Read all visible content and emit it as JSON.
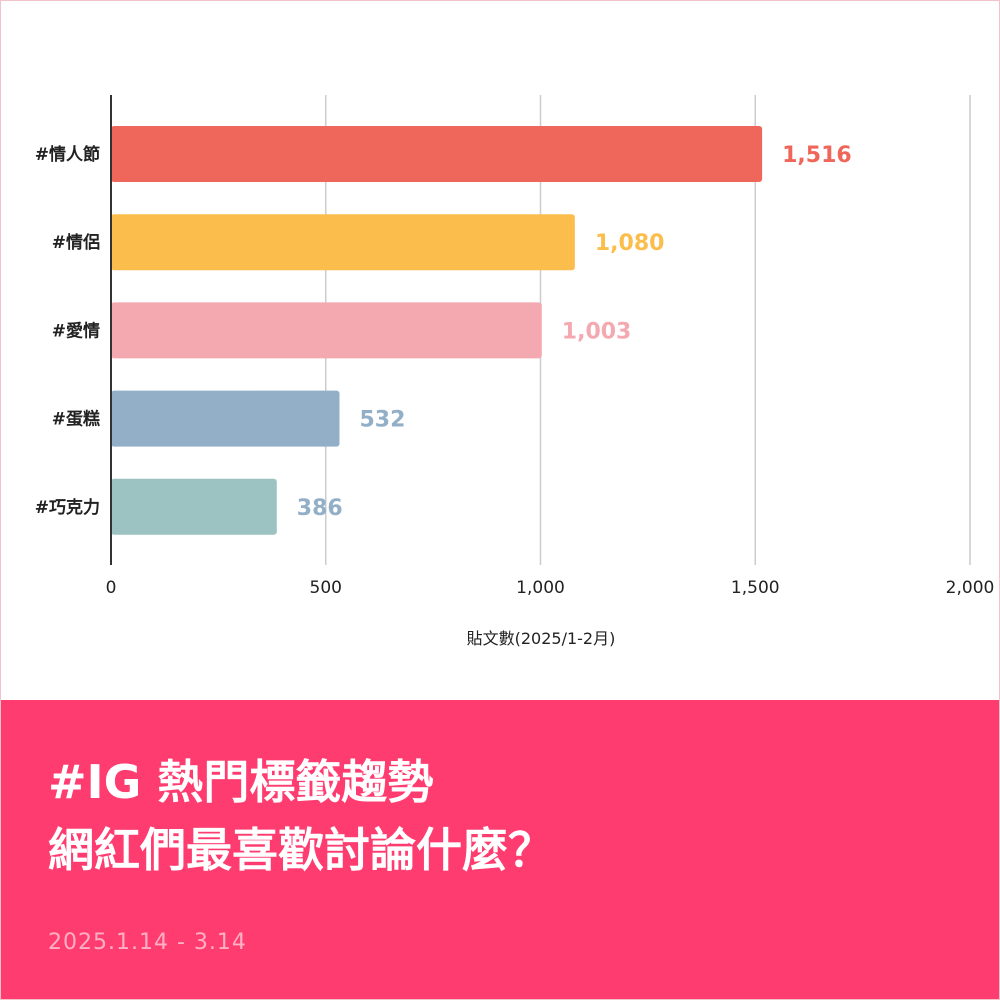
{
  "chart_data": {
    "type": "bar",
    "orientation": "horizontal",
    "categories": [
      "#情人節",
      "#情侶",
      "#愛情",
      "#蛋糕",
      "#巧克力"
    ],
    "values": [
      1516,
      1080,
      1003,
      532,
      386
    ],
    "value_labels": [
      "1,516",
      "1,080",
      "1,003",
      "532",
      "386"
    ],
    "colors": [
      "#ef675a",
      "#fbbd4c",
      "#f4a9b0",
      "#93afc8",
      "#9cc3c1"
    ],
    "label_colors": [
      "#ef675a",
      "#fbbd4c",
      "#f4a9b0",
      "#93afc8",
      "#93afc8"
    ],
    "xlabel": "貼文數(2025/1-2月)",
    "ylabel": "",
    "xlim": [
      0,
      2000
    ],
    "x_ticks": [
      0,
      500,
      1000,
      1500,
      2000
    ],
    "x_tick_labels": [
      "0",
      "500",
      "1,000",
      "1,500",
      "2,000"
    ],
    "grid": "vertical"
  },
  "banner": {
    "title_line1": "#IG 熱門標籤趨勢",
    "title_line2": "網紅們最喜歡討論什麼？",
    "date_range": "2025.1.14 - 3.14"
  }
}
